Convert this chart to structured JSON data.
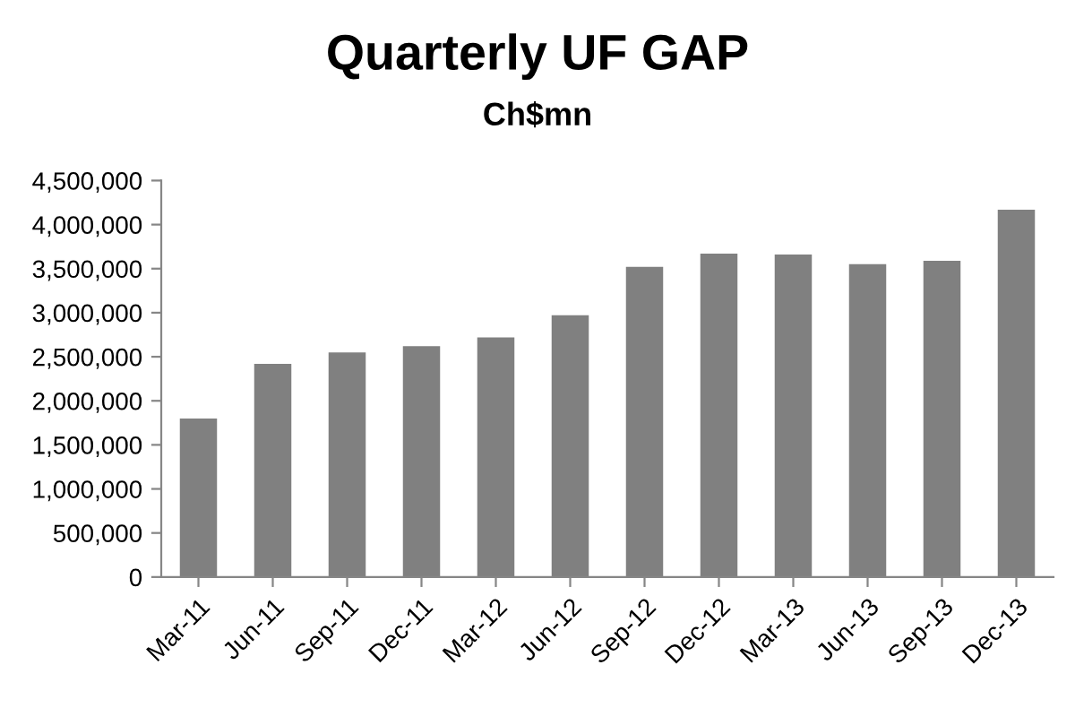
{
  "chart_data": {
    "type": "bar",
    "title": "Quarterly UF GAP",
    "subtitle": "Ch$mn",
    "categories": [
      "Mar-11",
      "Jun-11",
      "Sep-11",
      "Dec-11",
      "Mar-12",
      "Jun-12",
      "Sep-12",
      "Dec-12",
      "Mar-13",
      "Jun-13",
      "Sep-13",
      "Dec-13"
    ],
    "values": [
      1800000,
      2420000,
      2550000,
      2620000,
      2720000,
      2970000,
      3520000,
      3670000,
      3660000,
      3550000,
      3590000,
      4170000
    ],
    "color": "#808080",
    "ylim": [
      0,
      4500000
    ],
    "yticks": [
      {
        "value": 0,
        "label": "0"
      },
      {
        "value": 500000,
        "label": "500,000"
      },
      {
        "value": 1000000,
        "label": "1,000,000"
      },
      {
        "value": 1500000,
        "label": "1,500,000"
      },
      {
        "value": 2000000,
        "label": "2,000,000"
      },
      {
        "value": 2500000,
        "label": "2,500,000"
      },
      {
        "value": 3000000,
        "label": "3,000,000"
      },
      {
        "value": 3500000,
        "label": "3,500,000"
      },
      {
        "value": 4000000,
        "label": "4,000,000"
      },
      {
        "value": 4500000,
        "label": "4,500,000"
      }
    ],
    "grid": false
  }
}
